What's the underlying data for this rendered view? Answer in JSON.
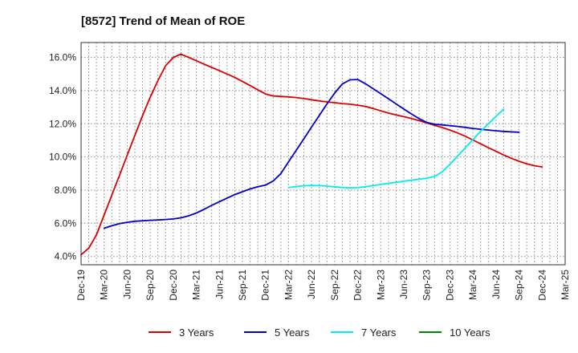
{
  "chart_data": {
    "type": "line",
    "title": "[8572]  Trend of Mean of ROE",
    "xlabel": "",
    "ylabel": "",
    "ylim": [
      3.5,
      16.9
    ],
    "grid": true,
    "legend_position": "bottom",
    "x_ticks": [
      "Dec-19",
      "Mar-20",
      "Jun-20",
      "Sep-20",
      "Dec-20",
      "Mar-21",
      "Jun-21",
      "Sep-21",
      "Dec-21",
      "Mar-22",
      "Jun-22",
      "Sep-22",
      "Dec-22",
      "Mar-23",
      "Jun-23",
      "Sep-23",
      "Dec-23",
      "Mar-24",
      "Jun-24",
      "Sep-24",
      "Dec-24",
      "Mar-25"
    ],
    "y_ticks": [
      {
        "value": 4.0,
        "label": "4.0%"
      },
      {
        "value": 6.0,
        "label": "6.0%"
      },
      {
        "value": 8.0,
        "label": "8.0%"
      },
      {
        "value": 10.0,
        "label": "10.0%"
      },
      {
        "value": 12.0,
        "label": "12.0%"
      },
      {
        "value": 14.0,
        "label": "14.0%"
      },
      {
        "value": 16.0,
        "label": "16.0%"
      }
    ],
    "series": [
      {
        "name": "3 Years",
        "color": "#dd0000",
        "start": 0,
        "values": [
          4.1,
          4.5,
          5.3,
          6.5,
          7.7,
          8.9,
          10.1,
          11.3,
          12.5,
          13.6,
          14.6,
          15.5,
          16.0,
          16.2,
          16.0,
          15.8,
          15.6,
          15.4,
          15.2,
          15.0,
          14.8,
          14.55,
          14.3,
          14.05,
          13.8,
          13.68,
          13.65,
          13.62,
          13.58,
          13.52,
          13.45,
          13.38,
          13.32,
          13.27,
          13.22,
          13.18,
          13.12,
          13.05,
          12.92,
          12.78,
          12.65,
          12.53,
          12.43,
          12.32,
          12.19,
          12.05,
          11.91,
          11.77,
          11.62,
          11.45,
          11.25,
          11.02,
          10.79,
          10.56,
          10.34,
          10.12,
          9.92,
          9.74,
          9.59,
          9.47,
          9.4
        ]
      },
      {
        "name": "5 Years",
        "color": "#0000cc",
        "start": 3,
        "values": [
          5.7,
          5.85,
          5.98,
          6.06,
          6.12,
          6.15,
          6.18,
          6.2,
          6.23,
          6.26,
          6.33,
          6.45,
          6.62,
          6.84,
          7.08,
          7.3,
          7.52,
          7.73,
          7.9,
          8.07,
          8.2,
          8.3,
          8.55,
          9.0,
          9.7,
          10.4,
          11.1,
          11.8,
          12.5,
          13.2,
          13.85,
          14.4,
          14.65,
          14.67,
          14.42,
          14.12,
          13.82,
          13.51,
          13.2,
          12.89,
          12.59,
          12.31,
          12.08,
          11.97,
          11.93,
          11.89,
          11.84,
          11.78,
          11.72,
          11.67,
          11.62,
          11.58,
          11.54,
          11.51,
          11.49
        ]
      },
      {
        "name": "7 Years",
        "color": "#00eeee",
        "start": 27,
        "values": [
          8.15,
          8.22,
          8.26,
          8.28,
          8.27,
          8.24,
          8.2,
          8.16,
          8.14,
          8.15,
          8.2,
          8.27,
          8.34,
          8.41,
          8.47,
          8.54,
          8.6,
          8.66,
          8.72,
          8.82,
          9.1,
          9.55,
          10.05,
          10.55,
          11.05,
          11.55,
          12.0,
          12.45,
          12.88
        ]
      },
      {
        "name": "10 Years",
        "color": "#008800",
        "start": 0,
        "values": []
      }
    ]
  }
}
